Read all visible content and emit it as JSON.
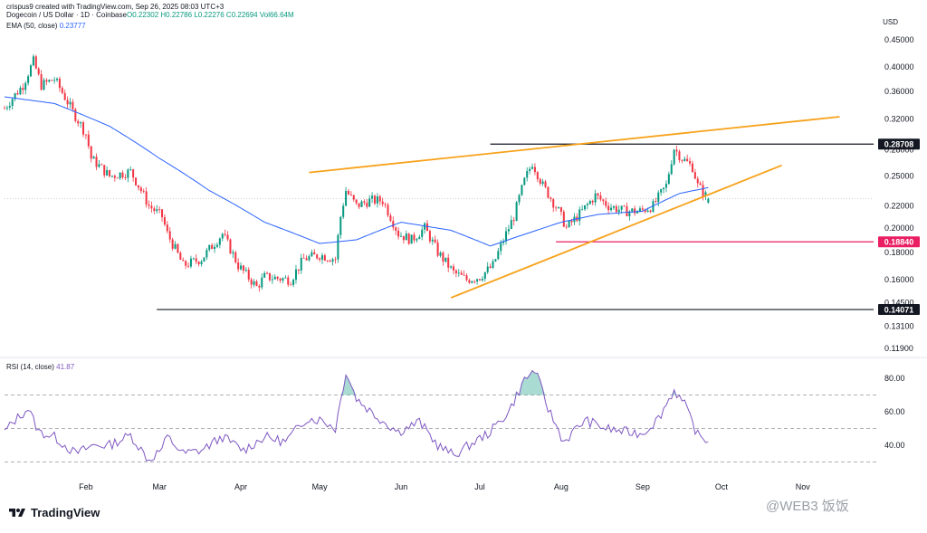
{
  "header": {
    "creator": "crispus9 created with TradingView.com, Sep 26, 2025 08:03 UTC+3",
    "symbol": "Dogecoin / US Dollar · 1D · Coinbase",
    "ohlc": {
      "o": "O0.22302",
      "h": "H0.22786",
      "l": "L0.22276",
      "c": "C0.22694",
      "vol": "Vol66.64M"
    },
    "ema_label": "EMA (50, close)",
    "ema_value": "0.23777",
    "currency": "USD"
  },
  "rsi_header": {
    "label": "RSI (14, close)",
    "value": "41.87"
  },
  "footer": {
    "brand": "TradingView"
  },
  "watermark": {
    "text": "@WEB3 饭饭"
  },
  "colors": {
    "up": "#089981",
    "down": "#f23645",
    "ema": "#2962ff",
    "rsi": "#7e57c2",
    "wedge": "#f7a21b",
    "level": "#131722",
    "support_pink": "#e91e63"
  },
  "chart_data": {
    "type": "candlestick",
    "x_ticks": [
      "Feb",
      "Mar",
      "Apr",
      "May",
      "Jun",
      "Jul",
      "Aug",
      "Sep",
      "Oct",
      "Nov"
    ],
    "y_ticks": [
      "0.45000",
      "0.40000",
      "0.36000",
      "0.32000",
      "0.28000",
      "0.25000",
      "0.22000",
      "0.20000",
      "0.18000",
      "0.16000",
      "0.14500",
      "0.13100",
      "0.11900"
    ],
    "y_scale": "log",
    "price_labels": [
      {
        "value": "0.28708",
        "style": "dark"
      },
      {
        "value": "0.18840",
        "style": "pink"
      },
      {
        "value": "0.14071",
        "style": "dark"
      }
    ],
    "horizontal_levels": [
      {
        "price": 0.28708,
        "from": "2025-07-05",
        "to": "2025-11-28",
        "color": "#131722"
      },
      {
        "price": 0.1884,
        "from": "2025-07-30",
        "to": "2025-11-28",
        "color": "#e91e63"
      },
      {
        "price": 0.14071,
        "from": "2025-02-28",
        "to": "2025-11-28",
        "color": "#131722"
      },
      {
        "price": 0.22694,
        "from": "2025-01-01",
        "to": "2025-11-28",
        "color": "#9e9e9e"
      }
    ],
    "wedge": {
      "upper": [
        [
          "2025-04-27",
          0.254
        ],
        [
          "2025-11-15",
          0.323
        ]
      ],
      "lower": [
        [
          "2025-06-20",
          0.148
        ],
        [
          "2025-10-24",
          0.262
        ]
      ]
    },
    "price_anchors": [
      [
        "2025-01-01",
        0.335
      ],
      [
        "2025-01-08",
        0.37
      ],
      [
        "2025-01-12",
        0.41
      ],
      [
        "2025-01-15",
        0.37
      ],
      [
        "2025-01-20",
        0.38
      ],
      [
        "2025-01-27",
        0.33
      ],
      [
        "2025-02-01",
        0.3
      ],
      [
        "2025-02-03",
        0.27
      ],
      [
        "2025-02-10",
        0.25
      ],
      [
        "2025-02-18",
        0.255
      ],
      [
        "2025-02-25",
        0.22
      ],
      [
        "2025-03-02",
        0.21
      ],
      [
        "2025-03-04",
        0.195
      ],
      [
        "2025-03-10",
        0.17
      ],
      [
        "2025-03-17",
        0.175
      ],
      [
        "2025-03-25",
        0.195
      ],
      [
        "2025-03-31",
        0.17
      ],
      [
        "2025-04-07",
        0.155
      ],
      [
        "2025-04-10",
        0.162
      ],
      [
        "2025-04-20",
        0.16
      ],
      [
        "2025-04-25",
        0.175
      ],
      [
        "2025-05-01",
        0.178
      ],
      [
        "2025-05-07",
        0.175
      ],
      [
        "2025-05-09",
        0.21
      ],
      [
        "2025-05-11",
        0.235
      ],
      [
        "2025-05-15",
        0.22
      ],
      [
        "2025-05-20",
        0.225
      ],
      [
        "2025-05-25",
        0.225
      ],
      [
        "2025-05-31",
        0.195
      ],
      [
        "2025-06-05",
        0.19
      ],
      [
        "2025-06-10",
        0.2
      ],
      [
        "2025-06-15",
        0.18
      ],
      [
        "2025-06-21",
        0.165
      ],
      [
        "2025-06-26",
        0.16
      ],
      [
        "2025-07-01",
        0.162
      ],
      [
        "2025-07-06",
        0.17
      ],
      [
        "2025-07-10",
        0.19
      ],
      [
        "2025-07-14",
        0.21
      ],
      [
        "2025-07-18",
        0.245
      ],
      [
        "2025-07-21",
        0.265
      ],
      [
        "2025-07-25",
        0.24
      ],
      [
        "2025-07-31",
        0.215
      ],
      [
        "2025-08-03",
        0.2
      ],
      [
        "2025-08-09",
        0.215
      ],
      [
        "2025-08-14",
        0.23
      ],
      [
        "2025-08-19",
        0.22
      ],
      [
        "2025-08-25",
        0.215
      ],
      [
        "2025-08-31",
        0.215
      ],
      [
        "2025-09-05",
        0.22
      ],
      [
        "2025-09-10",
        0.24
      ],
      [
        "2025-09-13",
        0.282
      ],
      [
        "2025-09-16",
        0.27
      ],
      [
        "2025-09-20",
        0.26
      ],
      [
        "2025-09-22",
        0.24
      ],
      [
        "2025-09-25",
        0.23
      ],
      [
        "2025-09-26",
        0.227
      ]
    ],
    "ema_anchors": [
      [
        "2025-01-01",
        0.352
      ],
      [
        "2025-01-20",
        0.342
      ],
      [
        "2025-02-10",
        0.31
      ],
      [
        "2025-03-01",
        0.27
      ],
      [
        "2025-03-20",
        0.235
      ],
      [
        "2025-04-10",
        0.205
      ],
      [
        "2025-05-01",
        0.187
      ],
      [
        "2025-05-15",
        0.19
      ],
      [
        "2025-06-01",
        0.205
      ],
      [
        "2025-06-20",
        0.198
      ],
      [
        "2025-07-05",
        0.185
      ],
      [
        "2025-07-20",
        0.196
      ],
      [
        "2025-08-01",
        0.205
      ],
      [
        "2025-08-15",
        0.212
      ],
      [
        "2025-09-01",
        0.215
      ],
      [
        "2025-09-15",
        0.232
      ],
      [
        "2025-09-26",
        0.238
      ]
    ],
    "rsi": {
      "y_ticks": [
        "80.00",
        "60.00",
        "40.00"
      ],
      "bands": [
        70,
        50,
        30
      ],
      "anchors": [
        [
          "2025-01-01",
          48
        ],
        [
          "2025-01-05",
          55
        ],
        [
          "2025-01-10",
          62
        ],
        [
          "2025-01-14",
          48
        ],
        [
          "2025-01-20",
          45
        ],
        [
          "2025-01-28",
          35
        ],
        [
          "2025-02-04",
          40
        ],
        [
          "2025-02-10",
          40
        ],
        [
          "2025-02-18",
          46
        ],
        [
          "2025-02-25",
          31
        ],
        [
          "2025-03-02",
          38
        ],
        [
          "2025-03-04",
          45
        ],
        [
          "2025-03-10",
          35
        ],
        [
          "2025-03-17",
          37
        ],
        [
          "2025-03-25",
          45
        ],
        [
          "2025-04-02",
          37
        ],
        [
          "2025-04-10",
          45
        ],
        [
          "2025-04-18",
          42
        ],
        [
          "2025-04-26",
          56
        ],
        [
          "2025-05-02",
          55
        ],
        [
          "2025-05-07",
          50
        ],
        [
          "2025-05-11",
          84
        ],
        [
          "2025-05-15",
          68
        ],
        [
          "2025-05-22",
          58
        ],
        [
          "2025-05-31",
          48
        ],
        [
          "2025-06-08",
          54
        ],
        [
          "2025-06-15",
          40
        ],
        [
          "2025-06-21",
          34
        ],
        [
          "2025-06-27",
          40
        ],
        [
          "2025-07-05",
          48
        ],
        [
          "2025-07-12",
          60
        ],
        [
          "2025-07-18",
          79
        ],
        [
          "2025-07-22",
          85
        ],
        [
          "2025-07-27",
          62
        ],
        [
          "2025-08-02",
          42
        ],
        [
          "2025-08-10",
          55
        ],
        [
          "2025-08-18",
          50
        ],
        [
          "2025-08-25",
          48
        ],
        [
          "2025-09-01",
          47
        ],
        [
          "2025-09-07",
          56
        ],
        [
          "2025-09-13",
          73
        ],
        [
          "2025-09-17",
          64
        ],
        [
          "2025-09-22",
          46
        ],
        [
          "2025-09-26",
          42
        ]
      ]
    }
  }
}
